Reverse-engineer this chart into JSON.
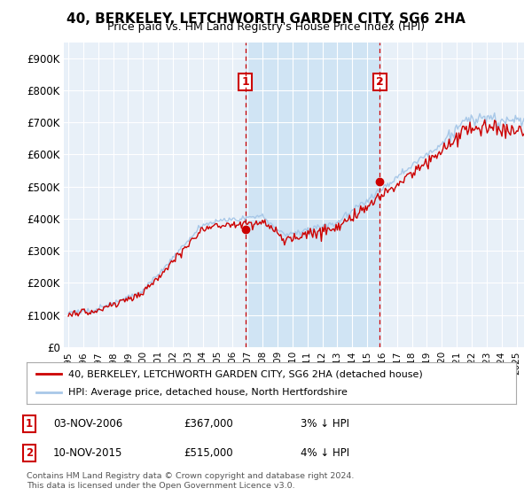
{
  "title": "40, BERKELEY, LETCHWORTH GARDEN CITY, SG6 2HA",
  "subtitle": "Price paid vs. HM Land Registry's House Price Index (HPI)",
  "ylabel_ticks": [
    "£0",
    "£100K",
    "£200K",
    "£300K",
    "£400K",
    "£500K",
    "£600K",
    "£700K",
    "£800K",
    "£900K"
  ],
  "ytick_values": [
    0,
    100000,
    200000,
    300000,
    400000,
    500000,
    600000,
    700000,
    800000,
    900000
  ],
  "ylim": [
    0,
    950000
  ],
  "sale1_date": "03-NOV-2006",
  "sale1_price": 367000,
  "sale1_label": "1",
  "sale1_pct": "3% ↓ HPI",
  "sale2_date": "10-NOV-2015",
  "sale2_price": 515000,
  "sale2_label": "2",
  "sale2_pct": "4% ↓ HPI",
  "sale1_x": 2006.84,
  "sale2_x": 2015.84,
  "legend_line1": "40, BERKELEY, LETCHWORTH GARDEN CITY, SG6 2HA (detached house)",
  "legend_line2": "HPI: Average price, detached house, North Hertfordshire",
  "footer": "Contains HM Land Registry data © Crown copyright and database right 2024.\nThis data is licensed under the Open Government Licence v3.0.",
  "hpi_color": "#a8c8e8",
  "price_color": "#cc0000",
  "vline_color": "#cc0000",
  "plot_bg": "#e8f0f8",
  "highlight_bg": "#d0e4f4",
  "grid_color": "#ffffff"
}
